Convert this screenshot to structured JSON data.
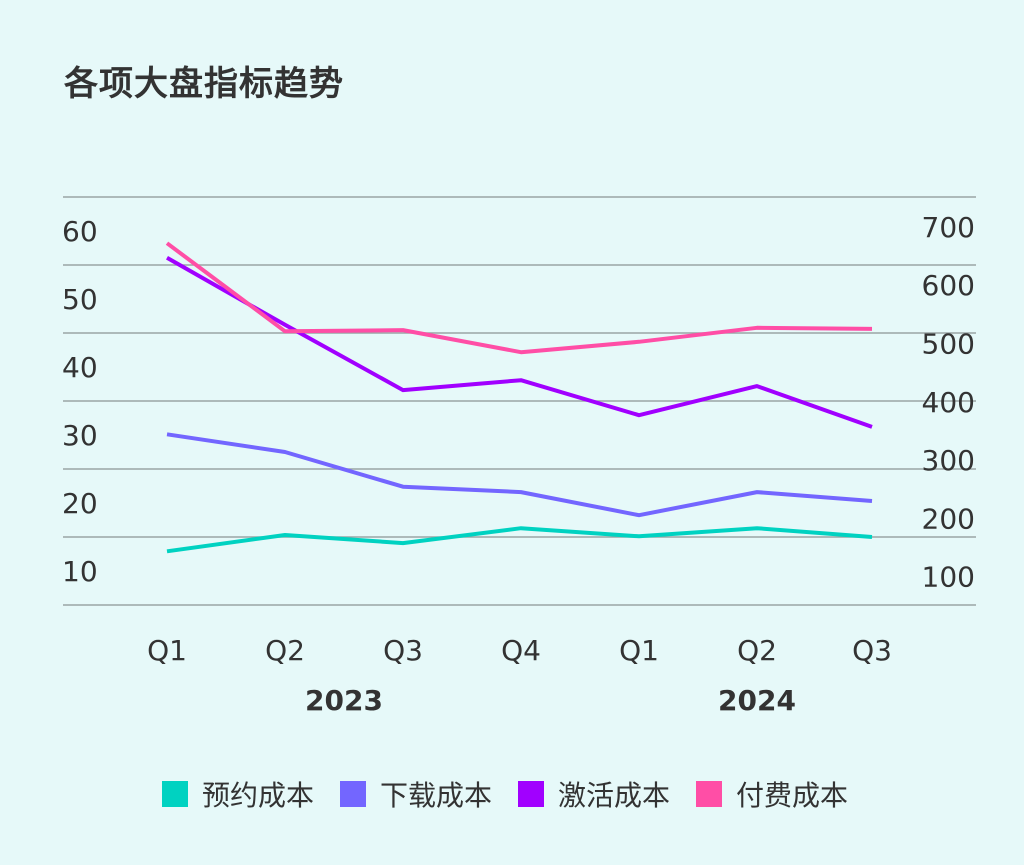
{
  "chart_data": {
    "type": "line",
    "title": "各项大盘指标趋势",
    "categories": [
      "Q1",
      "Q2",
      "Q3",
      "Q4",
      "Q1",
      "Q2",
      "Q3"
    ],
    "category_groups": [
      {
        "label": "2023",
        "span": [
          "Q1",
          "Q4"
        ]
      },
      {
        "label": "2024",
        "span": [
          "Q1",
          "Q3"
        ]
      }
    ],
    "y_left": {
      "ticks": [
        10,
        20,
        30,
        40,
        50,
        60
      ],
      "ylim": [
        0,
        60
      ]
    },
    "y_right": {
      "ticks": [
        100,
        200,
        300,
        400,
        500,
        600,
        700
      ],
      "ylim": [
        0,
        700
      ]
    },
    "grid": true,
    "legend_position": "bottom",
    "series": [
      {
        "name": "预约成本",
        "axis": "left",
        "color": "#00d2c1",
        "values": [
          7.9,
          10.3,
          9.1,
          11.3,
          10.1,
          11.3,
          10.0
        ]
      },
      {
        "name": "下载成本",
        "axis": "left",
        "color": "#7366ff",
        "values": [
          25.1,
          22.5,
          17.4,
          16.6,
          13.2,
          16.6,
          15.3
        ]
      },
      {
        "name": "激活成本",
        "axis": "right",
        "color": "#a100ff",
        "values": [
          647,
          532,
          420,
          437,
          377,
          427,
          357
        ]
      },
      {
        "name": "付费成本",
        "axis": "right",
        "color": "#ff4ea6",
        "values": [
          672,
          521,
          523,
          485,
          503,
          527,
          525
        ]
      }
    ]
  }
}
